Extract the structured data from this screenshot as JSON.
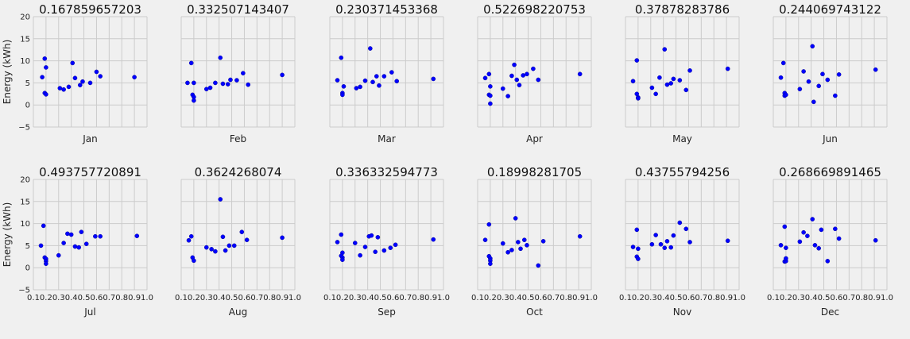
{
  "chart_data": {
    "type": "scatter",
    "ylabel": "Energy (kWh)",
    "xlim": [
      0.1,
      1.0
    ],
    "ylim": [
      -5,
      20
    ],
    "grid": true,
    "point_color": "#0000ff",
    "x_ticks": [
      "0.1",
      "0.2",
      "0.3",
      "0.4",
      "0.5",
      "0.6",
      "0.7",
      "0.8",
      "0.9",
      "1.0"
    ],
    "y_ticks": [
      "−5",
      "0",
      "5",
      "10",
      "15",
      "20"
    ],
    "panels": [
      {
        "title": "0.167859657203",
        "xlabel": "Jan",
        "points": [
          [
            0.17,
            6.3
          ],
          [
            0.19,
            10.5
          ],
          [
            0.2,
            8.5
          ],
          [
            0.19,
            2.7
          ],
          [
            0.2,
            2.4
          ],
          [
            0.31,
            3.8
          ],
          [
            0.34,
            3.5
          ],
          [
            0.38,
            4.1
          ],
          [
            0.41,
            9.5
          ],
          [
            0.43,
            6.1
          ],
          [
            0.47,
            4.5
          ],
          [
            0.49,
            5.3
          ],
          [
            0.55,
            5.0
          ],
          [
            0.6,
            7.5
          ],
          [
            0.63,
            6.5
          ],
          [
            0.9,
            6.3
          ]
        ]
      },
      {
        "title": "0.332507143407",
        "xlabel": "Feb",
        "points": [
          [
            0.15,
            5.0
          ],
          [
            0.18,
            9.5
          ],
          [
            0.2,
            5.0
          ],
          [
            0.19,
            2.3
          ],
          [
            0.2,
            1.8
          ],
          [
            0.2,
            1.0
          ],
          [
            0.3,
            3.6
          ],
          [
            0.33,
            3.9
          ],
          [
            0.37,
            5.0
          ],
          [
            0.41,
            10.7
          ],
          [
            0.43,
            4.8
          ],
          [
            0.47,
            4.7
          ],
          [
            0.49,
            5.7
          ],
          [
            0.54,
            5.6
          ],
          [
            0.59,
            7.2
          ],
          [
            0.63,
            4.6
          ],
          [
            0.9,
            6.8
          ]
        ]
      },
      {
        "title": "0.230371453368",
        "xlabel": "Mar",
        "points": [
          [
            0.16,
            5.6
          ],
          [
            0.19,
            10.7
          ],
          [
            0.21,
            4.2
          ],
          [
            0.2,
            2.7
          ],
          [
            0.2,
            2.3
          ],
          [
            0.31,
            3.8
          ],
          [
            0.34,
            4.1
          ],
          [
            0.38,
            5.5
          ],
          [
            0.42,
            12.8
          ],
          [
            0.44,
            5.2
          ],
          [
            0.47,
            6.5
          ],
          [
            0.49,
            4.4
          ],
          [
            0.53,
            6.5
          ],
          [
            0.59,
            7.4
          ],
          [
            0.63,
            5.4
          ],
          [
            0.92,
            5.9
          ]
        ]
      },
      {
        "title": "0.522698220753",
        "xlabel": "Apr",
        "points": [
          [
            0.16,
            6.1
          ],
          [
            0.19,
            7.0
          ],
          [
            0.2,
            4.2
          ],
          [
            0.19,
            2.3
          ],
          [
            0.2,
            2.1
          ],
          [
            0.2,
            0.3
          ],
          [
            0.3,
            3.7
          ],
          [
            0.34,
            2.0
          ],
          [
            0.37,
            6.6
          ],
          [
            0.39,
            9.1
          ],
          [
            0.41,
            5.7
          ],
          [
            0.43,
            4.5
          ],
          [
            0.46,
            6.7
          ],
          [
            0.49,
            7.0
          ],
          [
            0.54,
            8.2
          ],
          [
            0.58,
            5.7
          ],
          [
            0.91,
            7.0
          ]
        ]
      },
      {
        "title": "0.37878283786",
        "xlabel": "May",
        "points": [
          [
            0.16,
            5.4
          ],
          [
            0.19,
            10.1
          ],
          [
            0.19,
            2.5
          ],
          [
            0.2,
            1.7
          ],
          [
            0.2,
            1.5
          ],
          [
            0.31,
            3.9
          ],
          [
            0.34,
            2.5
          ],
          [
            0.37,
            6.2
          ],
          [
            0.41,
            12.6
          ],
          [
            0.43,
            4.6
          ],
          [
            0.46,
            4.9
          ],
          [
            0.48,
            5.9
          ],
          [
            0.53,
            5.6
          ],
          [
            0.58,
            3.4
          ],
          [
            0.61,
            7.8
          ],
          [
            0.91,
            8.2
          ]
        ]
      },
      {
        "title": "0.244069743122",
        "xlabel": "Jun",
        "points": [
          [
            0.16,
            6.2
          ],
          [
            0.18,
            9.5
          ],
          [
            0.19,
            2.7
          ],
          [
            0.19,
            2.1
          ],
          [
            0.2,
            2.3
          ],
          [
            0.31,
            3.6
          ],
          [
            0.34,
            7.6
          ],
          [
            0.38,
            5.3
          ],
          [
            0.41,
            13.3
          ],
          [
            0.42,
            0.7
          ],
          [
            0.46,
            4.3
          ],
          [
            0.49,
            7.0
          ],
          [
            0.53,
            5.7
          ],
          [
            0.59,
            2.1
          ],
          [
            0.62,
            6.9
          ],
          [
            0.91,
            8.0
          ]
        ]
      },
      {
        "title": "0.493757720891",
        "xlabel": "Jul",
        "points": [
          [
            0.16,
            5.0
          ],
          [
            0.18,
            9.5
          ],
          [
            0.19,
            2.3
          ],
          [
            0.2,
            2.0
          ],
          [
            0.2,
            1.5
          ],
          [
            0.2,
            0.9
          ],
          [
            0.3,
            2.8
          ],
          [
            0.34,
            5.6
          ],
          [
            0.37,
            7.7
          ],
          [
            0.4,
            7.5
          ],
          [
            0.43,
            4.8
          ],
          [
            0.46,
            4.6
          ],
          [
            0.48,
            8.1
          ],
          [
            0.52,
            5.4
          ],
          [
            0.59,
            7.1
          ],
          [
            0.63,
            7.1
          ],
          [
            0.92,
            7.2
          ]
        ]
      },
      {
        "title": "0.3624268074",
        "xlabel": "Aug",
        "points": [
          [
            0.16,
            6.2
          ],
          [
            0.18,
            7.1
          ],
          [
            0.19,
            2.3
          ],
          [
            0.2,
            1.6
          ],
          [
            0.3,
            4.6
          ],
          [
            0.34,
            4.2
          ],
          [
            0.37,
            3.7
          ],
          [
            0.41,
            15.5
          ],
          [
            0.43,
            7.0
          ],
          [
            0.45,
            3.9
          ],
          [
            0.48,
            5.0
          ],
          [
            0.52,
            5.0
          ],
          [
            0.58,
            8.1
          ],
          [
            0.62,
            6.3
          ],
          [
            0.9,
            6.8
          ]
        ]
      },
      {
        "title": "0.336332594773",
        "xlabel": "Sep",
        "points": [
          [
            0.16,
            5.8
          ],
          [
            0.19,
            7.5
          ],
          [
            0.2,
            3.4
          ],
          [
            0.19,
            2.7
          ],
          [
            0.2,
            2.3
          ],
          [
            0.2,
            1.8
          ],
          [
            0.3,
            5.6
          ],
          [
            0.34,
            2.8
          ],
          [
            0.38,
            4.7
          ],
          [
            0.41,
            7.1
          ],
          [
            0.43,
            7.3
          ],
          [
            0.46,
            3.6
          ],
          [
            0.48,
            6.9
          ],
          [
            0.53,
            3.9
          ],
          [
            0.58,
            4.5
          ],
          [
            0.62,
            5.2
          ],
          [
            0.92,
            6.4
          ]
        ]
      },
      {
        "title": "0.18998281705",
        "xlabel": "Oct",
        "points": [
          [
            0.16,
            6.3
          ],
          [
            0.19,
            9.8
          ],
          [
            0.19,
            2.6
          ],
          [
            0.2,
            2.1
          ],
          [
            0.2,
            1.6
          ],
          [
            0.2,
            0.9
          ],
          [
            0.3,
            5.5
          ],
          [
            0.34,
            3.5
          ],
          [
            0.37,
            4.0
          ],
          [
            0.4,
            11.2
          ],
          [
            0.42,
            5.8
          ],
          [
            0.44,
            4.3
          ],
          [
            0.47,
            6.3
          ],
          [
            0.49,
            5.1
          ],
          [
            0.58,
            0.5
          ],
          [
            0.62,
            6.0
          ],
          [
            0.91,
            7.1
          ]
        ]
      },
      {
        "title": "0.43755794256",
        "xlabel": "Nov",
        "points": [
          [
            0.16,
            4.7
          ],
          [
            0.19,
            8.6
          ],
          [
            0.19,
            2.5
          ],
          [
            0.2,
            2.0
          ],
          [
            0.2,
            4.3
          ],
          [
            0.31,
            5.3
          ],
          [
            0.34,
            7.4
          ],
          [
            0.38,
            5.3
          ],
          [
            0.41,
            4.5
          ],
          [
            0.43,
            6.0
          ],
          [
            0.46,
            4.6
          ],
          [
            0.48,
            7.3
          ],
          [
            0.53,
            10.2
          ],
          [
            0.58,
            8.8
          ],
          [
            0.61,
            5.8
          ],
          [
            0.91,
            6.1
          ]
        ]
      },
      {
        "title": "0.268669891465",
        "xlabel": "Dec",
        "points": [
          [
            0.16,
            5.1
          ],
          [
            0.19,
            9.3
          ],
          [
            0.2,
            4.5
          ],
          [
            0.19,
            1.4
          ],
          [
            0.2,
            1.5
          ],
          [
            0.2,
            2.1
          ],
          [
            0.31,
            5.9
          ],
          [
            0.34,
            8.0
          ],
          [
            0.37,
            7.2
          ],
          [
            0.41,
            11.0
          ],
          [
            0.43,
            5.1
          ],
          [
            0.46,
            4.4
          ],
          [
            0.48,
            8.6
          ],
          [
            0.53,
            1.5
          ],
          [
            0.59,
            8.8
          ],
          [
            0.62,
            6.6
          ],
          [
            0.91,
            6.2
          ]
        ]
      }
    ]
  }
}
